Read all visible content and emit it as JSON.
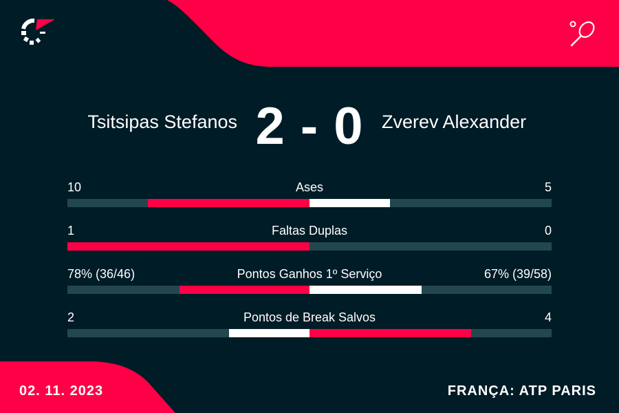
{
  "header": {
    "logo_icon": "flashscore-logo-icon",
    "sport_icon": "tennis-racket-icon"
  },
  "match": {
    "player1": "Tsitsipas Stefanos",
    "player2": "Zverev Alexander",
    "score": "2 - 0"
  },
  "stats": [
    {
      "name": "Ases",
      "left_label": "10",
      "right_label": "5",
      "left": 10,
      "right": 5
    },
    {
      "name": "Faltas Duplas",
      "left_label": "1",
      "right_label": "0",
      "left": 1,
      "right": 0
    },
    {
      "name": "Pontos Ganhos 1º Serviço",
      "left_label": "78% (36/46)",
      "right_label": "67% (39/58)",
      "left": 78,
      "right": 67
    },
    {
      "name": "Pontos de Break Salvos",
      "left_label": "2",
      "right_label": "4",
      "left": 2,
      "right": 4
    }
  ],
  "footer": {
    "date": "02. 11. 2023",
    "competition": "FRANÇA: ATP PARIS"
  },
  "colors": {
    "background": "#001c27",
    "accent": "#ff0046",
    "track": "#22474f",
    "secondary": "#ffffff"
  }
}
